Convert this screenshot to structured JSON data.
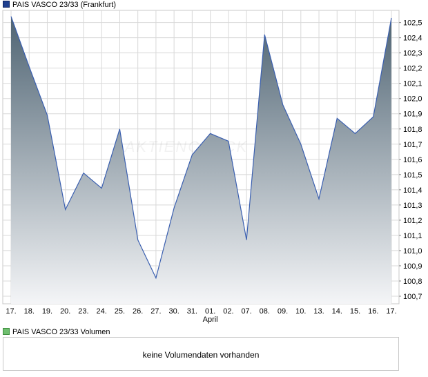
{
  "legend_main": {
    "label": "PAIS VASCO 23/33 (Frankfurt)",
    "color": "#1f3f8f"
  },
  "legend_volume": {
    "label": "PAIS VASCO 23/33 Volumen",
    "color": "#6fbf6f"
  },
  "volume_message": "keine Volumendaten vorhanden",
  "watermark": "AKTIENCHECK",
  "colors": {
    "line": "#3a5fb0",
    "fill_top": "#4f6473",
    "fill_bottom": "#f4f5f7",
    "grid": "#d8d8d8",
    "axis": "#c8c8c8"
  },
  "chart_data": {
    "type": "area",
    "title": "",
    "xlabel": "",
    "ylabel": "",
    "x": [
      "17.",
      "18.",
      "19.",
      "20.",
      "23.",
      "24.",
      "25.",
      "26.",
      "27.",
      "30.",
      "31.",
      "01.",
      "02.",
      "07.",
      "08.",
      "09.",
      "10.",
      "13.",
      "14.",
      "15.",
      "16.",
      "17."
    ],
    "x_sublabels": [
      {
        "index": 11,
        "label": "April"
      }
    ],
    "series": [
      {
        "values": [
          102.54,
          102.21,
          101.89,
          101.27,
          101.51,
          101.41,
          101.8,
          101.07,
          100.82,
          101.28,
          101.63,
          101.77,
          101.72,
          101.07,
          102.42,
          101.96,
          101.7,
          101.34,
          101.87,
          101.77,
          101.88,
          102.53
        ]
      }
    ],
    "y_ticks": [
      "102,5",
      "102,4",
      "102,3",
      "102,2",
      "102,1",
      "102,0",
      "101,9",
      "101,8",
      "101,7",
      "101,6",
      "101,5",
      "101,4",
      "101,3",
      "101,2",
      "101,1",
      "101,0",
      "100,9",
      "100,8",
      "100,7"
    ],
    "ylim": [
      100.65,
      102.58
    ],
    "y_axis_position": "right",
    "grid": true
  }
}
